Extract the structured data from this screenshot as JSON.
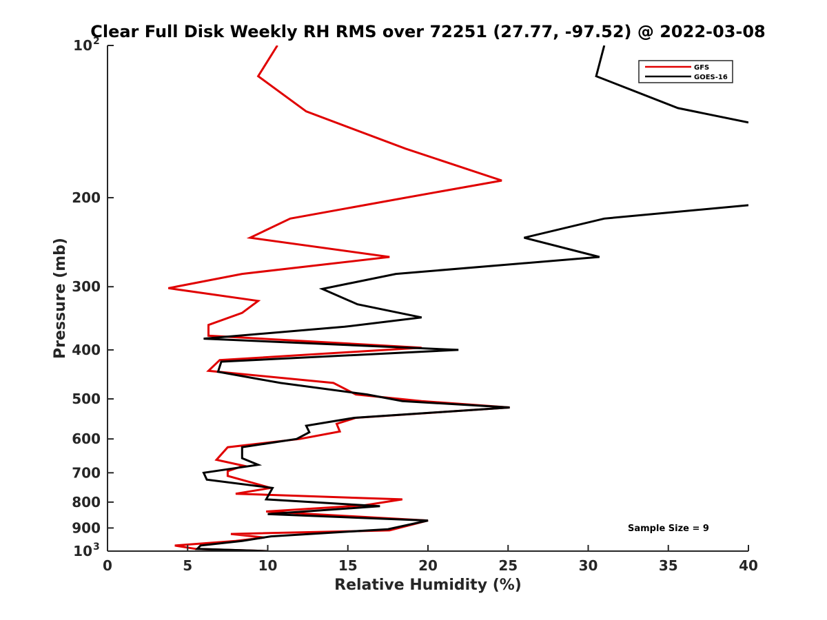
{
  "chart_data": {
    "type": "line",
    "title": "Clear Full Disk Weekly RH RMS over 72251 (27.77, -97.52) @ 2022-03-08",
    "xlabel": "Relative Humidity (%)",
    "ylabel": "Pressure (mb)",
    "xlim": [
      0,
      40
    ],
    "ylim": [
      100,
      1000
    ],
    "y_scale": "log",
    "y_reversed": true,
    "x_ticks": [
      "0",
      "5",
      "10",
      "15",
      "20",
      "25",
      "30",
      "35",
      "40"
    ],
    "x_tick_values": [
      0,
      5,
      10,
      15,
      20,
      25,
      30,
      35,
      40
    ],
    "y_ticks": [
      {
        "value": 100,
        "base": "10",
        "exp": "2"
      },
      {
        "value": 200,
        "base": "200",
        "exp": ""
      },
      {
        "value": 300,
        "base": "300",
        "exp": ""
      },
      {
        "value": 400,
        "base": "400",
        "exp": ""
      },
      {
        "value": 500,
        "base": "500",
        "exp": ""
      },
      {
        "value": 600,
        "base": "600",
        "exp": ""
      },
      {
        "value": 700,
        "base": "700",
        "exp": ""
      },
      {
        "value": 800,
        "base": "800",
        "exp": ""
      },
      {
        "value": 900,
        "base": "900",
        "exp": ""
      },
      {
        "value": 1000,
        "base": "10",
        "exp": "3"
      }
    ],
    "grid": false,
    "legend_position": "top-right",
    "annotation": "Sample Size = 9",
    "series": [
      {
        "name": "GFS",
        "color": "#e00000",
        "x": [
          10.6,
          9.4,
          12.4,
          18.6,
          24.6,
          18.6,
          11.4,
          8.9,
          17.6,
          8.4,
          3.8,
          9.4,
          8.4,
          6.3,
          6.3,
          19.6,
          7.0,
          6.3,
          14.1,
          15.5,
          19.6,
          25.1,
          15.5,
          14.3,
          14.5,
          12.0,
          7.5,
          6.8,
          8.5,
          7.5,
          7.5,
          10.2,
          8.0,
          18.4,
          16.0,
          9.9,
          20.0,
          17.6,
          7.7,
          9.8,
          8.0,
          4.2,
          5.5,
          10.0
        ],
        "y": [
          100,
          115,
          135,
          160,
          185,
          200,
          220,
          240,
          262,
          283,
          302,
          320,
          338,
          357,
          375,
          396,
          419,
          440,
          465,
          490,
          505,
          520,
          545,
          560,
          580,
          600,
          623,
          660,
          678,
          695,
          710,
          750,
          770,
          790,
          812,
          835,
          870,
          910,
          925,
          940,
          955,
          975,
          990,
          1000
        ]
      },
      {
        "name": "GOES-16",
        "color": "#000000",
        "x": [
          31.0,
          30.5,
          35.6,
          40.0,
          null,
          40.0,
          31.0,
          26.0,
          30.7,
          18.0,
          13.4,
          15.6,
          19.6,
          14.8,
          6.0,
          21.9,
          7.1,
          6.9,
          10.8,
          16.2,
          18.4,
          25.1,
          15.4,
          12.4,
          12.6,
          11.8,
          8.4,
          8.4,
          9.4,
          6.0,
          6.2,
          10.3,
          9.9,
          17.0,
          10.0,
          20.0,
          17.5,
          10.2,
          8.4,
          5.8,
          5.6,
          10.0
        ],
        "y": [
          100,
          115,
          133,
          142,
          null,
          207,
          220,
          240,
          262,
          283,
          303,
          325,
          345,
          360,
          380,
          400,
          422,
          442,
          465,
          490,
          505,
          520,
          545,
          565,
          582,
          600,
          623,
          655,
          675,
          700,
          722,
          750,
          790,
          815,
          845,
          870,
          905,
          935,
          955,
          975,
          990,
          1000
        ]
      }
    ]
  }
}
